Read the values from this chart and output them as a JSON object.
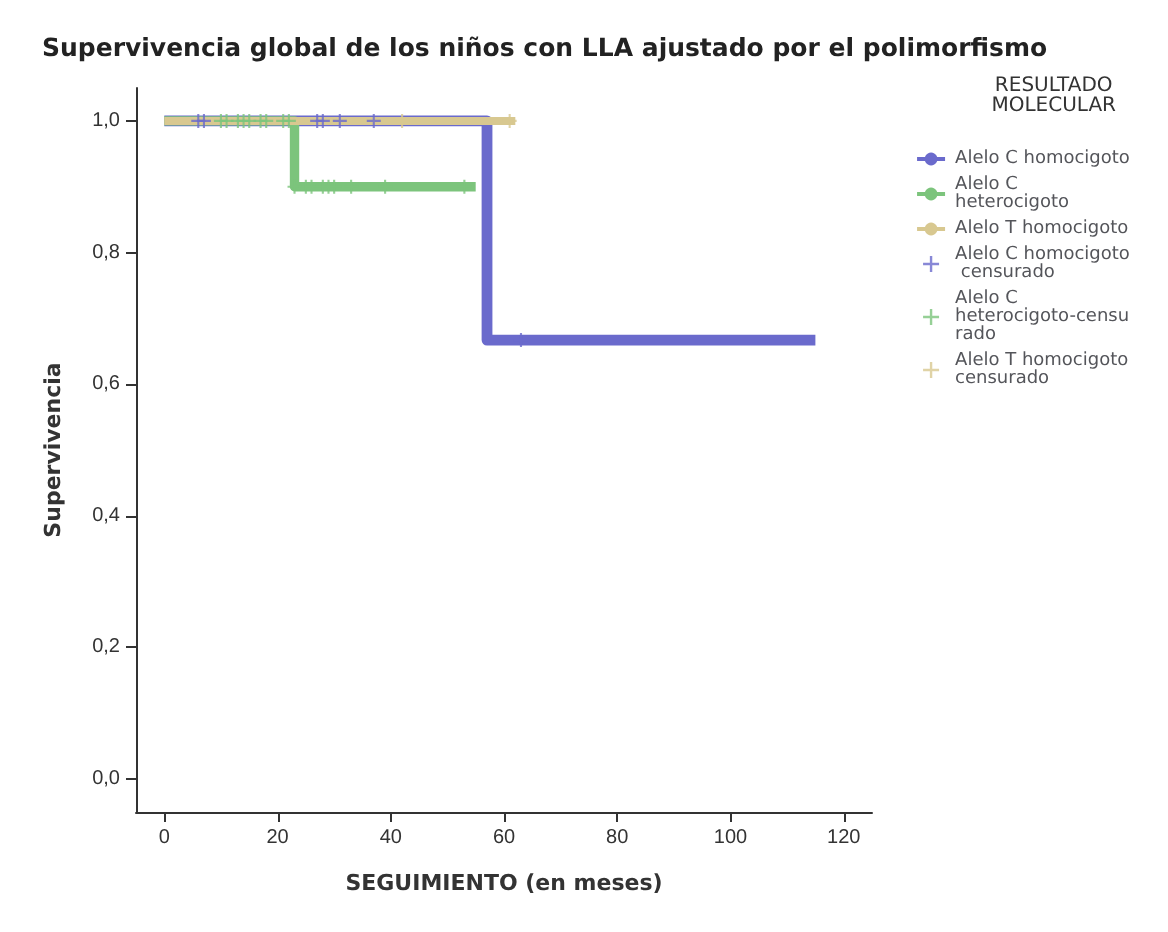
{
  "chart_data": {
    "type": "step",
    "title": "Supervivencia global de los niños con LLA ajustado por el polimorfismo",
    "xlabel": "SEGUIMIENTO (en meses)",
    "ylabel": "Supervivencia",
    "legend_title": "RESULTADO MOLECULAR",
    "legend": "right",
    "grid": false,
    "xlim": [
      -5,
      125
    ],
    "xticks": [
      0,
      20,
      40,
      60,
      80,
      100,
      120
    ],
    "ylim": [
      -0.05,
      1.05
    ],
    "yticks": [
      {
        "value": 0,
        "label": "0,0"
      },
      {
        "value": 0.2,
        "label": "0,2"
      },
      {
        "value": 0.4,
        "label": "0,4"
      },
      {
        "value": 0.6,
        "label": "0,6"
      },
      {
        "value": 0.8,
        "label": "0,8"
      },
      {
        "value": 1,
        "label": "1,0"
      }
    ],
    "series": [
      {
        "name": "Alelo C homocigoto",
        "type": "step",
        "marker": "none",
        "color": "#6a6acc",
        "x": [
          0,
          57,
          115
        ],
        "values": [
          1,
          0.667,
          0.667
        ]
      },
      {
        "name": "Alelo C heterocigoto",
        "type": "step",
        "marker": "none",
        "color": "#7cc47c",
        "x": [
          0,
          23,
          55
        ],
        "values": [
          1,
          0.9,
          0.9
        ]
      },
      {
        "name": "Alelo T homocigoto",
        "type": "step",
        "marker": "none",
        "color": "#d8c890",
        "x": [
          0,
          62
        ],
        "values": [
          1,
          1
        ]
      },
      {
        "name": "Alelo C homocigoto censurado",
        "type": "scatter",
        "marker": "cross",
        "color": "#6a6acc",
        "x": [
          6,
          7,
          27,
          28,
          31,
          37,
          63
        ],
        "values": [
          1,
          1,
          1,
          1,
          1,
          1,
          0.667
        ]
      },
      {
        "name": "Alelo C heterocigoto-censurado",
        "type": "scatter",
        "marker": "cross",
        "color": "#7cc47c",
        "x": [
          10,
          11,
          13,
          14,
          15,
          17,
          18,
          21,
          22,
          23,
          25,
          26,
          28,
          29,
          30,
          33,
          39,
          53
        ],
        "values": [
          1,
          1,
          1,
          1,
          1,
          1,
          1,
          1,
          1,
          0.9,
          0.9,
          0.9,
          0.9,
          0.9,
          0.9,
          0.9,
          0.9,
          0.9
        ]
      },
      {
        "name": "Alelo T homocigoto censurado",
        "type": "scatter",
        "marker": "cross",
        "color": "#d8c890",
        "x": [
          42,
          61
        ],
        "values": [
          1,
          1
        ]
      }
    ]
  }
}
